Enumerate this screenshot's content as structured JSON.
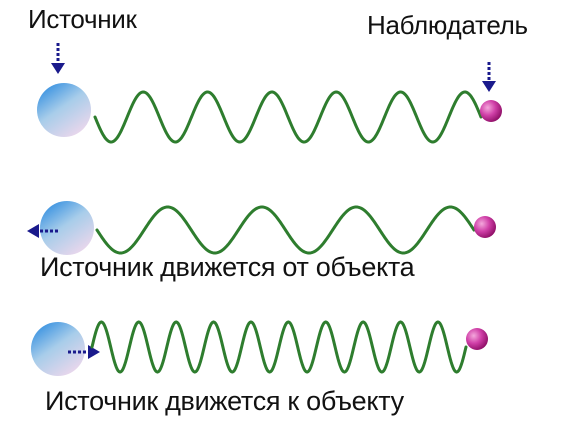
{
  "labels": {
    "source": "Источник",
    "observer": "Наблюдатель",
    "moving_away": "Источник движется от объекта",
    "moving_toward": "Источник движется к объекту"
  },
  "rows": [
    {
      "id": "stationary",
      "waves": 6,
      "source_motion": "none",
      "arrow_direction": "down"
    },
    {
      "id": "moving-away",
      "waves": 4,
      "source_motion": "left",
      "arrow_direction": "left"
    },
    {
      "id": "moving-toward",
      "waves": 10,
      "source_motion": "right",
      "arrow_direction": "right"
    }
  ],
  "colors": {
    "wave": "#2e7d2e",
    "arrow": "#1a1a8c",
    "observer": "#c2188a",
    "source_top": "#2f8de0",
    "source_bottom": "#f3d8ec",
    "text": "#111111"
  },
  "icons": {
    "source": "source-sphere",
    "observer": "observer-sphere",
    "arrow": "dashed-arrow-icon"
  }
}
